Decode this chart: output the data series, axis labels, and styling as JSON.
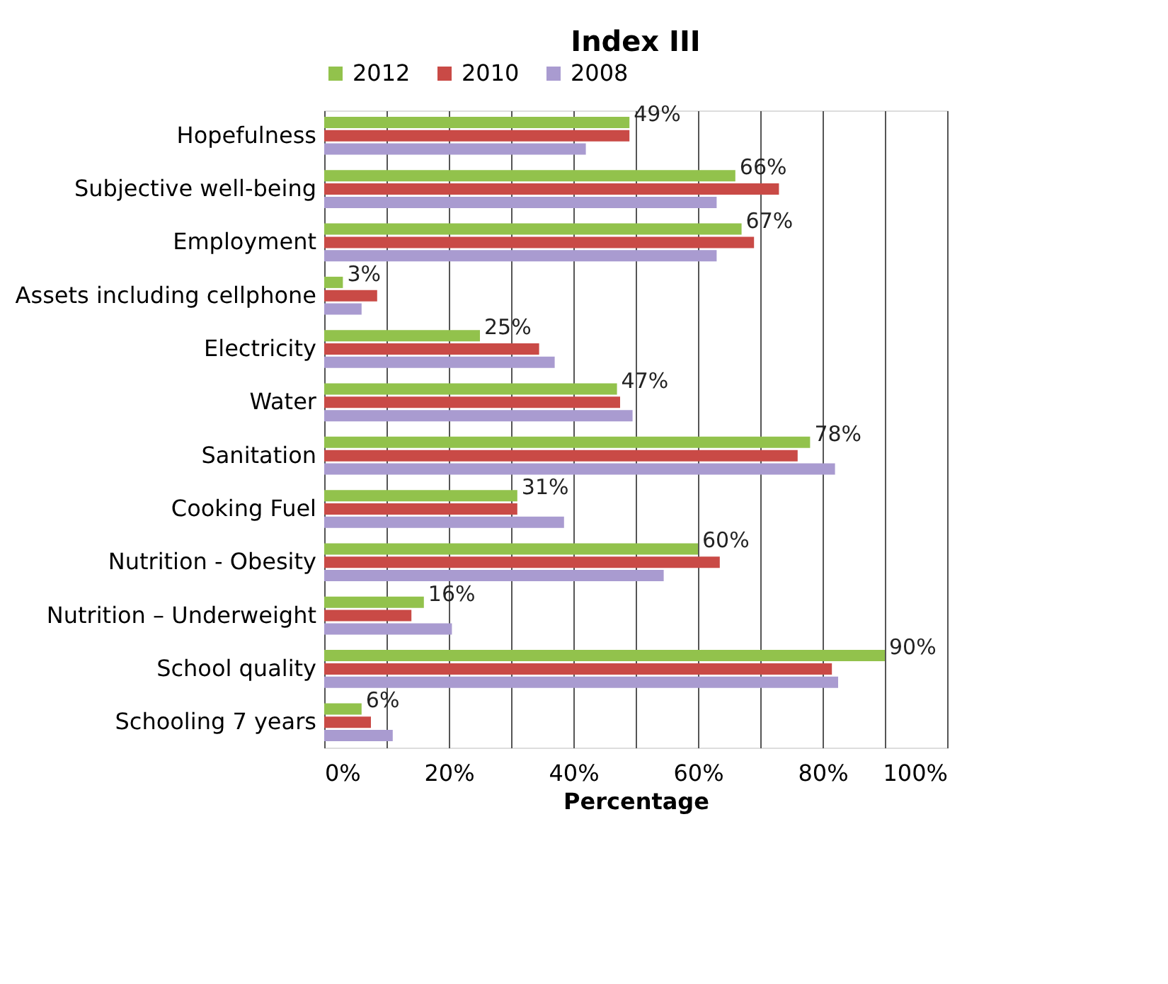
{
  "chart_data": {
    "type": "bar",
    "orientation": "horizontal",
    "title": "Index III",
    "xlabel": "Percentage",
    "categories": [
      "Hopefulness",
      "Subjective well-being",
      "Employment",
      "Assets including cellphone",
      "Electricity",
      "Water",
      "Sanitation",
      "Cooking Fuel",
      "Nutrition - Obesity",
      "Nutrition – Underweight",
      "School quality",
      "Schooling 7 years"
    ],
    "series": [
      {
        "name": "2012",
        "color": "#92c24c",
        "values": [
          49,
          66,
          67,
          3,
          25,
          47,
          78,
          31,
          60,
          16,
          90,
          6
        ],
        "value_labels": [
          "49%",
          "66%",
          "67%",
          "3%",
          "25%",
          "47%",
          "78%",
          "31%",
          "60%",
          "16%",
          "90%",
          "6%"
        ]
      },
      {
        "name": "2010",
        "color": "#c94a46",
        "values": [
          49,
          73,
          69,
          8.5,
          34.5,
          47.5,
          76,
          31,
          63.5,
          14,
          81.5,
          7.5
        ]
      },
      {
        "name": "2008",
        "color": "#a99bd0",
        "values": [
          42,
          63,
          63,
          6,
          37,
          49.5,
          82,
          38.5,
          54.5,
          20.5,
          82.5,
          11
        ]
      }
    ],
    "xlim": [
      0,
      100
    ],
    "xticks": [
      {
        "value": 0,
        "label": "0%"
      },
      {
        "value": 10,
        "label": null
      },
      {
        "value": 20,
        "label": "20%"
      },
      {
        "value": 30,
        "label": null
      },
      {
        "value": 40,
        "label": "40%"
      },
      {
        "value": 50,
        "label": null
      },
      {
        "value": 60,
        "label": "60%"
      },
      {
        "value": 70,
        "label": null
      },
      {
        "value": 80,
        "label": "80%"
      },
      {
        "value": 90,
        "label": null
      },
      {
        "value": 100,
        "label": "100%"
      }
    ],
    "grid": "x",
    "legend": "top"
  }
}
